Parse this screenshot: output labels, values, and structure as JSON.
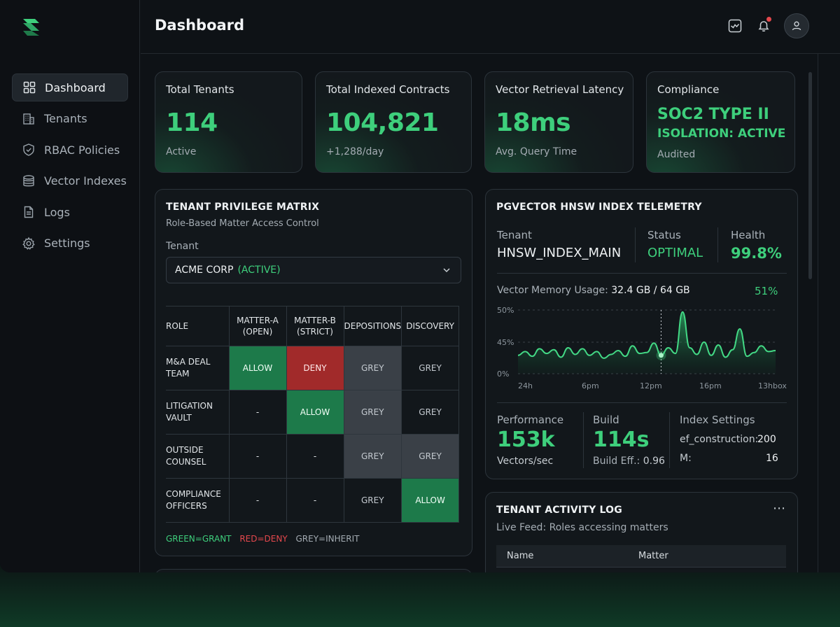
{
  "app": {
    "page_title": "Dashboard"
  },
  "sidebar": {
    "items": [
      {
        "label": "Dashboard",
        "icon": "grid-icon",
        "active": true
      },
      {
        "label": "Tenants",
        "icon": "building-icon"
      },
      {
        "label": "RBAC Policies",
        "icon": "shield-icon"
      },
      {
        "label": "Vector Indexes",
        "icon": "database-icon"
      },
      {
        "label": "Logs",
        "icon": "document-icon"
      },
      {
        "label": "Settings",
        "icon": "gear-icon"
      }
    ]
  },
  "topbar": {
    "icons": [
      "activity-icon",
      "bell-icon",
      "user-icon"
    ],
    "notification": true
  },
  "stats": [
    {
      "label": "Total Tenants",
      "value": "114",
      "sub": "Active"
    },
    {
      "label": "Total Indexed Contracts",
      "value": "104,821",
      "sub": "+1,288/day"
    },
    {
      "label": "Vector Retrieval Latency",
      "value": "18ms",
      "sub": "Avg. Query Time"
    },
    {
      "label": "Compliance",
      "line1": "SOC2 TYPE II",
      "line2": "ISOLATION: ACTIVE",
      "sub": "Audited"
    }
  ],
  "matrix": {
    "title": "TENANT PRIVILEGE MATRIX",
    "subtitle": "Role-Based Matter Access Control",
    "tenant_label": "Tenant",
    "tenant_name": "ACME CORP",
    "tenant_status": "(ACTIVE)",
    "headers": [
      "ROLE",
      "MATTER-A (OPEN)",
      "MATTER-B (STRICT)",
      "DEPOSITIONS",
      "DISCOVERY"
    ],
    "header_lines": [
      [
        "ROLE"
      ],
      [
        "MATTER-A",
        "(OPEN)"
      ],
      [
        "MATTER-B",
        "(STRICT)"
      ],
      [
        "DEPOSITIONS"
      ],
      [
        "DISCOVERY"
      ]
    ],
    "rows": [
      {
        "role": [
          "M&A DEAL",
          "TEAM"
        ],
        "cells": [
          [
            "ALLOW",
            "allow"
          ],
          [
            "DENY",
            "deny"
          ],
          [
            "GREY",
            "grey"
          ],
          [
            "GREY",
            "greyt"
          ]
        ]
      },
      {
        "role": [
          "LITIGATION",
          "VAULT"
        ],
        "cells": [
          [
            "-",
            ""
          ],
          [
            "ALLOW",
            "allow"
          ],
          [
            "GREY",
            "grey"
          ],
          [
            "GREY",
            "greyt"
          ]
        ]
      },
      {
        "role": [
          "OUTSIDE",
          "COUNSEL"
        ],
        "cells": [
          [
            "-",
            ""
          ],
          [
            "-",
            ""
          ],
          [
            "GREY",
            "grey"
          ],
          [
            "GREY",
            "grey"
          ]
        ]
      },
      {
        "role": [
          "COMPLIANCE",
          "OFFICERS"
        ],
        "cells": [
          [
            "-",
            ""
          ],
          [
            "-",
            ""
          ],
          [
            "GREY",
            "greyt"
          ],
          [
            "ALLOW",
            "allow"
          ]
        ]
      }
    ],
    "legend": {
      "green": "GREEN=GRANT",
      "red": "RED=DENY",
      "grey": "GREY=INHERIT"
    }
  },
  "telemetry": {
    "title": "PGVECTOR HNSW INDEX TELEMETRY",
    "tenant_label": "Tenant",
    "tenant_value": "HNSW_INDEX_MAIN",
    "status_label": "Status",
    "status_value": "OPTIMAL",
    "health_label": "Health",
    "health_value": "99.8%",
    "memory_label": "Vector Memory Usage:",
    "memory_value": "32.4 GB / 64 GB",
    "memory_pct": "51%",
    "perf_label": "Performance",
    "perf_value": "153k",
    "perf_sub": "Vectors/sec",
    "build_label": "Build",
    "build_value": "114s",
    "build_sub_label": "Build Eff.:",
    "build_sub_value": "0.96",
    "settings_label": "Index Settings",
    "ef_label": "ef_construction:",
    "ef_value": "200",
    "m_label": "M:",
    "m_value": "16"
  },
  "chart_data": {
    "type": "area",
    "x_ticks": [
      "24h",
      "6pm",
      "12pm",
      "16pm",
      "13hbox"
    ],
    "y_ticks": [
      "50%",
      "45%",
      "0%"
    ],
    "series": [
      {
        "values": [
          45.2,
          45.6,
          45.1,
          45.9,
          45.4,
          45.8,
          45.0,
          46.0,
          45.3,
          45.9,
          45.2,
          45.6,
          44.9,
          45.3,
          45.7,
          45.1,
          46.2,
          45.4,
          45.5,
          46.5,
          45.2,
          46.0,
          45.4,
          49.8,
          46.0,
          45.3,
          46.6,
          45.2,
          46.3,
          45.0,
          45.8,
          48.0,
          45.1,
          45.5,
          46.2,
          45.6,
          45.7
        ]
      }
    ],
    "highlight_index": 20,
    "ylim": [
      44,
      50
    ]
  },
  "log": {
    "title": "TENANT ACTIVITY LOG",
    "subtitle": "Live Feed: Roles accessing matters",
    "columns": [
      "Name",
      "Matter"
    ]
  },
  "colors": {
    "accent": "#3ecf7c",
    "deny": "#a12a2a",
    "allow": "#1d7a4a",
    "grey": "#3a4047"
  }
}
